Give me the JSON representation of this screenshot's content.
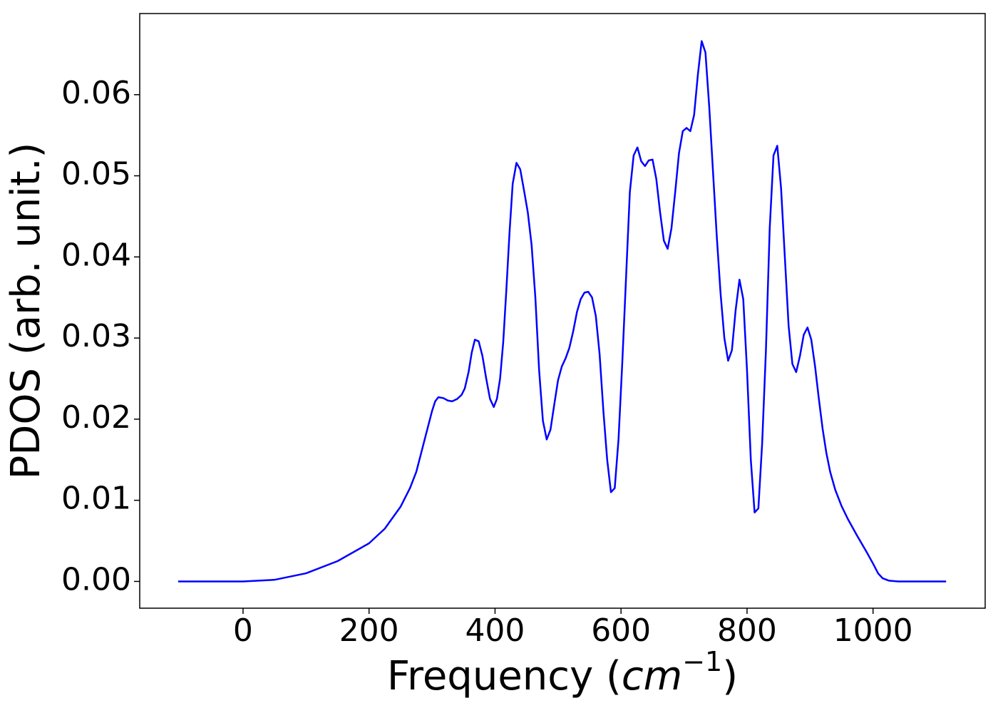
{
  "chart_data": {
    "type": "line",
    "xlabel": [
      "Frequency (",
      "cm",
      "−1",
      ")"
    ],
    "ylabel": "PDOS (arb. unit.)",
    "xlim": [
      -164,
      1178
    ],
    "ylim": [
      -0.0033,
      0.07
    ],
    "xticks": [
      0,
      200,
      400,
      600,
      800,
      1000
    ],
    "yticks": [
      {
        "value": 0,
        "label": "0.00"
      },
      0.01,
      0.02,
      0.03,
      0.04,
      0.05,
      0.06
    ],
    "series": [
      {
        "color": "#0000ff",
        "x": [
          -103,
          0,
          50,
          100,
          150,
          200,
          225,
          250,
          265,
          275,
          285,
          295,
          300,
          305,
          310,
          318,
          325,
          332,
          340,
          347,
          352,
          358,
          363,
          368,
          374,
          380,
          386,
          392,
          398,
          403,
          408,
          413,
          418,
          423,
          428,
          434,
          440,
          446,
          452,
          458,
          464,
          470,
          476,
          482,
          488,
          494,
          500,
          506,
          512,
          518,
          524,
          530,
          536,
          542,
          548,
          554,
          560,
          566,
          572,
          578,
          584,
          590,
          596,
          602,
          608,
          614,
          620,
          626,
          632,
          638,
          644,
          650,
          656,
          662,
          668,
          674,
          680,
          686,
          692,
          698,
          704,
          710,
          716,
          722,
          728,
          734,
          740,
          746,
          752,
          758,
          764,
          770,
          776,
          782,
          788,
          794,
          800,
          806,
          812,
          818,
          824,
          830,
          836,
          842,
          848,
          854,
          860,
          866,
          872,
          878,
          884,
          890,
          896,
          902,
          908,
          914,
          920,
          926,
          932,
          940,
          950,
          960,
          975,
          990,
          1000,
          1008,
          1015,
          1025,
          1040,
          1116
        ],
        "values": [
          0,
          0,
          0.0002,
          0.001,
          0.0025,
          0.0047,
          0.0065,
          0.0092,
          0.0115,
          0.0135,
          0.0165,
          0.0195,
          0.021,
          0.0222,
          0.0227,
          0.0226,
          0.0223,
          0.0222,
          0.0225,
          0.023,
          0.0238,
          0.0258,
          0.0282,
          0.0298,
          0.0296,
          0.0278,
          0.025,
          0.0225,
          0.0215,
          0.0225,
          0.025,
          0.0295,
          0.036,
          0.043,
          0.049,
          0.0516,
          0.0508,
          0.0482,
          0.0455,
          0.0415,
          0.035,
          0.026,
          0.0198,
          0.0175,
          0.0187,
          0.0218,
          0.0248,
          0.0265,
          0.0275,
          0.0288,
          0.0308,
          0.0332,
          0.0348,
          0.0356,
          0.0357,
          0.035,
          0.0327,
          0.028,
          0.021,
          0.015,
          0.011,
          0.0115,
          0.0175,
          0.027,
          0.0375,
          0.048,
          0.0525,
          0.0535,
          0.0518,
          0.0512,
          0.0519,
          0.052,
          0.0496,
          0.0455,
          0.042,
          0.041,
          0.0435,
          0.048,
          0.0528,
          0.0555,
          0.0559,
          0.0555,
          0.0575,
          0.0625,
          0.0666,
          0.0652,
          0.0585,
          0.0505,
          0.0425,
          0.0355,
          0.03,
          0.0272,
          0.0285,
          0.0335,
          0.0372,
          0.0348,
          0.026,
          0.015,
          0.0085,
          0.009,
          0.017,
          0.0285,
          0.0435,
          0.0525,
          0.0537,
          0.0485,
          0.04,
          0.0315,
          0.0268,
          0.0258,
          0.0278,
          0.0304,
          0.0313,
          0.0298,
          0.0265,
          0.0225,
          0.0188,
          0.0158,
          0.0135,
          0.0113,
          0.0093,
          0.0077,
          0.0056,
          0.0036,
          0.0022,
          0.001,
          0.0004,
          0.0001,
          0,
          0
        ]
      }
    ]
  }
}
